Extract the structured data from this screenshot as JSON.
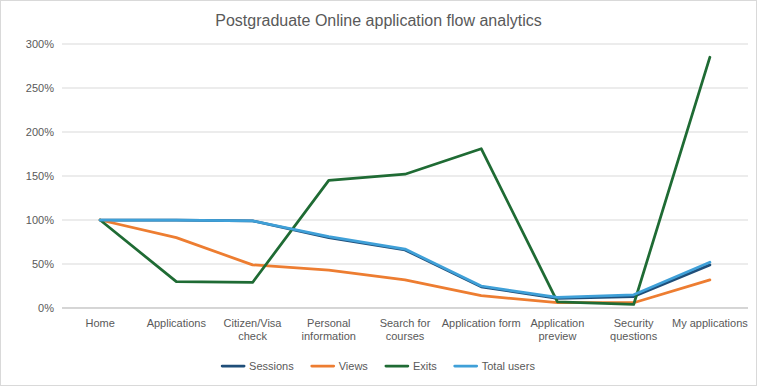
{
  "chart_data": {
    "type": "line",
    "title": "Postgraduate Online application flow analytics",
    "categories": [
      "Home",
      "Applications",
      "Citizen/Visa check",
      "Personal information",
      "Search for courses",
      "Application form",
      "Application preview",
      "Security questions",
      "My applications"
    ],
    "series": [
      {
        "name": "Sessions",
        "color": "#1f4e79",
        "values": [
          100,
          100,
          99,
          80,
          66,
          24,
          11,
          13,
          49
        ]
      },
      {
        "name": "Views",
        "color": "#ed7d31",
        "values": [
          100,
          80,
          49,
          43,
          32,
          14,
          6,
          6,
          32
        ]
      },
      {
        "name": "Exits",
        "color": "#1f6b34",
        "values": [
          100,
          30,
          29,
          145,
          152,
          181,
          7,
          4,
          285
        ]
      },
      {
        "name": "Total users",
        "color": "#3fa0d8",
        "values": [
          100,
          100,
          99,
          81,
          67,
          25,
          12,
          15,
          52
        ]
      }
    ],
    "ylim": [
      0,
      300
    ],
    "yticks": [
      {
        "value": 0,
        "label": "0%"
      },
      {
        "value": 50,
        "label": "50%"
      },
      {
        "value": 100,
        "label": "100%"
      },
      {
        "value": 150,
        "label": "150%"
      },
      {
        "value": 200,
        "label": "200%"
      },
      {
        "value": 250,
        "label": "250%"
      },
      {
        "value": 300,
        "label": "300%"
      }
    ],
    "grid": true,
    "legend": "bottom"
  }
}
